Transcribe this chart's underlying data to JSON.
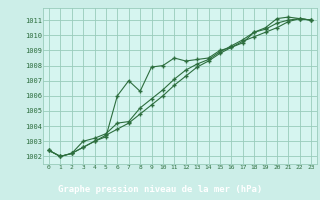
{
  "title": "Graphe pression niveau de la mer (hPa)",
  "bg_color": "#cceee8",
  "plot_bg_color": "#d6f5f0",
  "grid_color": "#99ccbb",
  "line_color": "#2d6e3e",
  "footer_bg": "#2d6e3e",
  "footer_text_color": "#ffffff",
  "x_ticks": [
    0,
    1,
    2,
    3,
    4,
    5,
    6,
    7,
    8,
    9,
    10,
    11,
    12,
    13,
    14,
    15,
    16,
    17,
    18,
    19,
    20,
    21,
    22,
    23
  ],
  "y_ticks": [
    1002,
    1003,
    1004,
    1005,
    1006,
    1007,
    1008,
    1009,
    1010,
    1011
  ],
  "ylim": [
    1001.5,
    1011.8
  ],
  "xlim": [
    -0.5,
    23.5
  ],
  "series1": [
    1002.4,
    1002.0,
    1002.2,
    1002.6,
    1003.0,
    1003.3,
    1006.0,
    1007.0,
    1006.3,
    1007.9,
    1008.0,
    1008.5,
    1008.3,
    1008.4,
    1008.5,
    1009.0,
    1009.2,
    1009.5,
    1010.2,
    1010.5,
    1011.1,
    1011.2,
    1011.1,
    1011.0
  ],
  "series2": [
    1002.4,
    1002.0,
    1002.2,
    1003.0,
    1003.2,
    1003.5,
    1004.2,
    1004.3,
    1005.2,
    1005.8,
    1006.4,
    1007.1,
    1007.7,
    1008.1,
    1008.4,
    1008.9,
    1009.3,
    1009.7,
    1010.2,
    1010.4,
    1010.8,
    1011.0,
    1011.1,
    1011.0
  ],
  "series3": [
    1002.4,
    1002.0,
    1002.2,
    1002.6,
    1003.0,
    1003.4,
    1003.8,
    1004.2,
    1004.8,
    1005.4,
    1006.0,
    1006.7,
    1007.3,
    1007.9,
    1008.3,
    1008.8,
    1009.2,
    1009.6,
    1009.9,
    1010.2,
    1010.5,
    1010.9,
    1011.1,
    1011.0
  ]
}
